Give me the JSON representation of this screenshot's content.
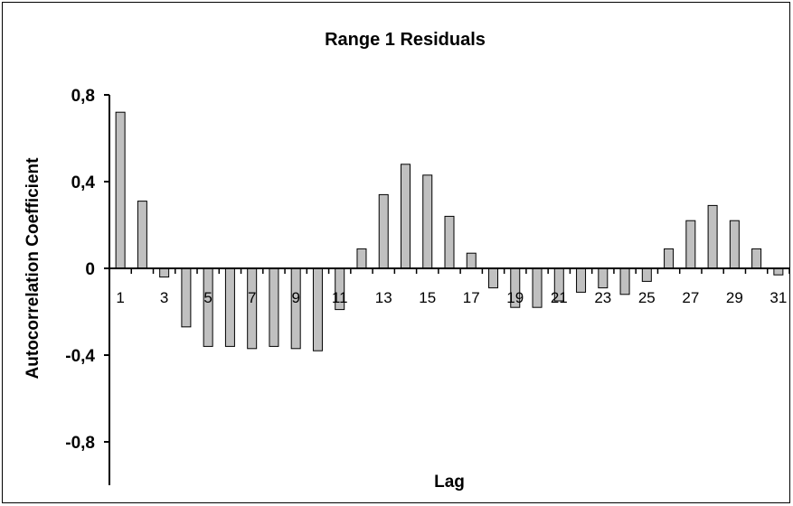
{
  "chart_data": {
    "type": "bar",
    "title": "Range 1 Residuals",
    "xlabel": "Lag",
    "ylabel": "Autocorrelation Coefficient",
    "ylim": [
      -1.0,
      0.8
    ],
    "yticks": [
      0.8,
      0.4,
      0,
      -0.4,
      -0.8
    ],
    "ytick_labels": [
      "0,8",
      "0,4",
      "0",
      "-0,4",
      "-0,8"
    ],
    "categories": [
      1,
      2,
      3,
      4,
      5,
      6,
      7,
      8,
      9,
      10,
      11,
      12,
      13,
      14,
      15,
      16,
      17,
      18,
      19,
      20,
      21,
      22,
      23,
      24,
      25,
      26,
      27,
      28,
      29,
      30,
      31
    ],
    "xtick_labels": [
      "1",
      "3",
      "5",
      "7",
      "9",
      "11",
      "13",
      "15",
      "17",
      "19",
      "21",
      "23",
      "25",
      "27",
      "29",
      "31"
    ],
    "values": [
      0.72,
      0.31,
      -0.04,
      -0.27,
      -0.36,
      -0.36,
      -0.37,
      -0.36,
      -0.37,
      -0.38,
      -0.19,
      0.09,
      0.34,
      0.48,
      0.43,
      0.24,
      0.07,
      -0.09,
      -0.18,
      -0.18,
      -0.15,
      -0.11,
      -0.09,
      -0.12,
      -0.06,
      0.09,
      0.22,
      0.29,
      0.22,
      0.09,
      -0.03
    ],
    "bar_color": "#c0c0c0",
    "bar_edge_color": "#000000",
    "grid": false,
    "legend": false
  }
}
